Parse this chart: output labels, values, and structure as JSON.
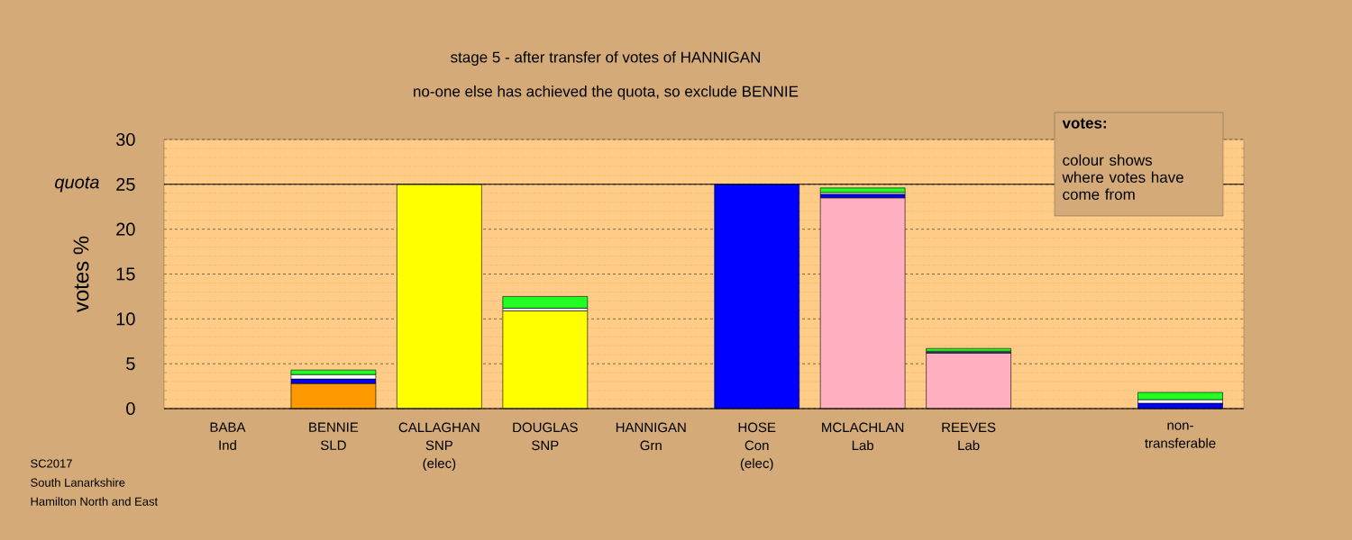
{
  "chart_data": {
    "type": "bar",
    "stacked": true,
    "title": "stage 5 - after transfer of votes of HANNIGAN",
    "subtitle": "no-one else has achieved the quota, so exclude BENNIE",
    "ylabel": "votes %",
    "categories": [
      "BABA Ind",
      "BENNIE SLD",
      "CALLAGHAN SNP (elec)",
      "DOUGLAS SNP",
      "HANNIGAN Grn",
      "HOSE Con (elec)",
      "MCLACHLAN Lab",
      "REEVES Lab",
      null,
      "non-transferable"
    ],
    "series": [
      {
        "colors": [
          null,
          "#ff9900",
          "#ffff00",
          "#ffff00",
          null,
          "#0000ff",
          "#ffb0c0",
          "#ffb0c0",
          null,
          null
        ],
        "values": [
          null,
          2.8,
          25,
          10.9,
          null,
          25,
          23.5,
          6.2,
          null,
          null
        ]
      },
      {
        "color": "#0000ff",
        "values": [
          null,
          0.5,
          null,
          null,
          null,
          null,
          0.4,
          0.1,
          null,
          0.6
        ]
      },
      {
        "color": "#ffffff",
        "values": [
          null,
          0.5,
          null,
          0.3,
          null,
          null,
          0.2,
          0.1,
          null,
          0.4
        ]
      },
      {
        "color": "#22ff22",
        "values": [
          null,
          0.5,
          null,
          1.3,
          null,
          null,
          0.5,
          0.3,
          null,
          0.8
        ]
      }
    ],
    "ylim": [
      0,
      30
    ],
    "yticks": [
      0,
      5,
      10,
      15,
      20,
      25,
      30
    ],
    "grid": true,
    "ref_lines": [
      {
        "axis": "y",
        "value": 25,
        "label": "quota"
      }
    ],
    "annotations": [
      "votes:",
      "colour shows where votes have come from",
      "SC2017",
      "South Lanarkshire",
      "Hamilton North and East"
    ]
  }
}
